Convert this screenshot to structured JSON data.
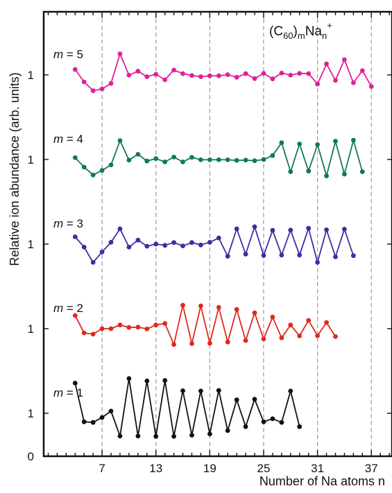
{
  "chart_data": {
    "type": "line",
    "formula": {
      "base": "(C",
      "sub1": "60",
      "mid": ")",
      "sub2": "m",
      "na": "Na",
      "sub3": "n",
      "sup": "+"
    },
    "xlabel": "Number of Na atoms n",
    "ylabel": "Relative ion abundance (arb. units)",
    "xlim": [
      0.5,
      39.3
    ],
    "xticks": [
      7,
      13,
      19,
      25,
      31,
      37
    ],
    "x_minor_step": 1,
    "dashed_gridlines_x": [
      7,
      13,
      19,
      25,
      31,
      37
    ],
    "y_zero_label": "0",
    "y_unit_label": "1",
    "series": [
      {
        "name": "m = 1",
        "m_value": "1",
        "color": "#111111",
        "baseline": 1,
        "n_start": 4,
        "values": [
          1.99,
          0.72,
          0.7,
          0.86,
          1.07,
          0.25,
          2.14,
          0.25,
          2.06,
          0.24,
          2.08,
          0.24,
          1.74,
          0.28,
          1.73,
          0.32,
          1.75,
          0.43,
          1.44,
          0.56,
          1.46,
          0.72,
          0.82,
          0.7,
          1.73,
          0.56
        ]
      },
      {
        "name": "m = 2",
        "m_value": "2",
        "color": "#dd2a1e",
        "baseline": 1,
        "n_start": 4,
        "values": [
          1.43,
          0.86,
          0.82,
          1.0,
          1.0,
          1.12,
          1.04,
          1.05,
          0.99,
          1.12,
          1.17,
          0.48,
          1.77,
          0.51,
          1.75,
          0.52,
          1.7,
          0.56,
          1.63,
          0.61,
          1.52,
          0.66,
          1.38,
          0.7,
          1.12,
          0.76,
          1.27,
          0.77,
          1.2,
          0.74
        ]
      },
      {
        "name": "m = 3",
        "m_value": "3",
        "color": "#3d2ea0",
        "baseline": 1,
        "n_start": 4,
        "values": [
          1.24,
          0.9,
          0.4,
          0.74,
          1.06,
          1.5,
          0.9,
          1.13,
          0.93,
          1.0,
          0.96,
          1.05,
          0.94,
          1.05,
          0.97,
          1.06,
          1.2,
          0.6,
          1.5,
          0.67,
          1.57,
          0.63,
          1.45,
          0.64,
          1.46,
          0.64,
          1.52,
          0.4,
          1.47,
          0.58,
          1.49,
          0.62
        ]
      },
      {
        "name": "m = 4",
        "m_value": "4",
        "color": "#0f7a55",
        "baseline": 1,
        "n_start": 4,
        "values": [
          1.06,
          0.75,
          0.49,
          0.64,
          0.82,
          1.62,
          0.98,
          1.17,
          0.95,
          1.03,
          0.92,
          1.08,
          0.92,
          1.07,
          0.99,
          0.99,
          0.99,
          0.99,
          0.97,
          0.98,
          0.96,
          1.0,
          1.13,
          1.55,
          0.6,
          1.51,
          0.62,
          1.49,
          0.46,
          1.6,
          0.52,
          1.63,
          0.6
        ]
      },
      {
        "name": "m = 5",
        "m_value": "5",
        "color": "#e0209a",
        "baseline": 1,
        "n_start": 4,
        "values": [
          1.18,
          0.77,
          0.48,
          0.54,
          0.72,
          1.69,
          0.99,
          1.12,
          0.94,
          1.02,
          0.84,
          1.16,
          1.04,
          0.98,
          0.94,
          0.97,
          0.97,
          1.01,
          0.92,
          1.04,
          0.88,
          1.05,
          0.87,
          1.06,
          0.99,
          1.05,
          1.04,
          0.7,
          1.36,
          0.82,
          1.5,
          0.74,
          1.14,
          0.62
        ]
      }
    ]
  }
}
